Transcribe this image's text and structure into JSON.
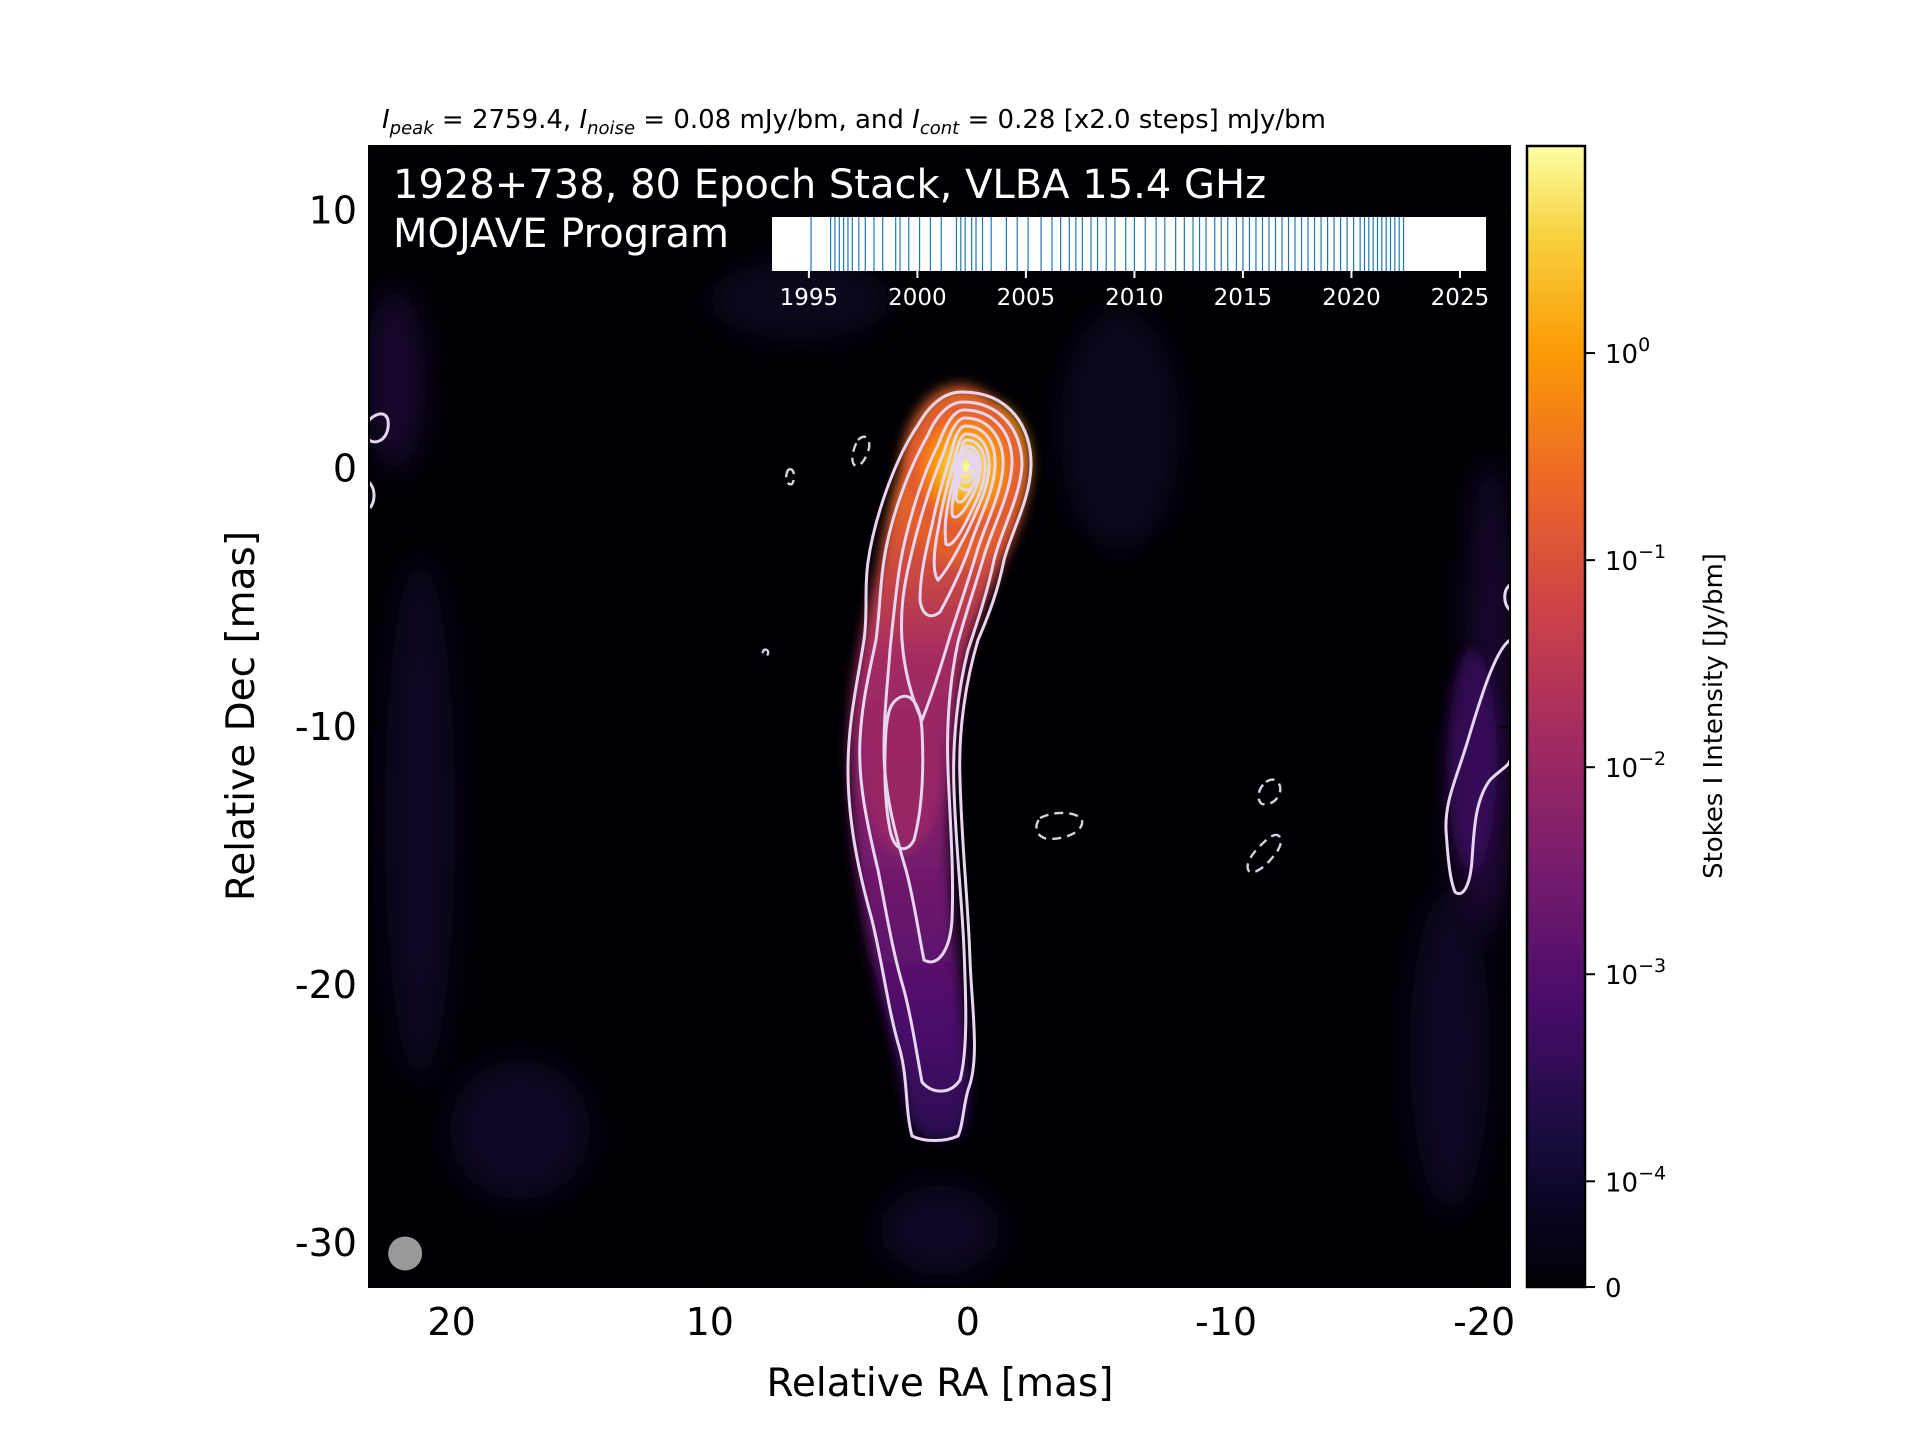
{
  "chart_data": {
    "type": "heatmap",
    "title_parts": {
      "peak_symbol": "I",
      "peak_sub": "peak",
      "peak_value": " = 2759.4, ",
      "noise_symbol": "I",
      "noise_sub": "noise",
      "noise_value": " = 0.08 mJy/bm, and ",
      "cont_symbol": "I",
      "cont_sub": "cont",
      "cont_value": " = 0.28 [x2.0 steps] mJy/bm"
    },
    "overlay_title": "1928+738, 80 Epoch Stack, VLBA 15.4 GHz",
    "overlay_subtitle": "MOJAVE Program",
    "xlabel": "Relative RA [mas]",
    "ylabel": "Relative Dec [mas]",
    "xlim": [
      23.2,
      -21
    ],
    "ylim": [
      -31.7,
      12.5
    ],
    "x_ticks": [
      {
        "v": 20,
        "label": "20"
      },
      {
        "v": 10,
        "label": "10"
      },
      {
        "v": 0,
        "label": "0"
      },
      {
        "v": -10,
        "label": "-10"
      },
      {
        "v": -20,
        "label": "-20"
      }
    ],
    "y_ticks": [
      {
        "v": 10,
        "label": "10"
      },
      {
        "v": 0,
        "label": "0"
      },
      {
        "v": -10,
        "label": "-10"
      },
      {
        "v": -20,
        "label": "-20"
      },
      {
        "v": -30,
        "label": "-30"
      }
    ],
    "colorbar": {
      "label": "Stokes I Intensity [Jy/bm]",
      "scale": "log",
      "colormap": "inferno",
      "ticks": [
        {
          "value": 1,
          "base": "10",
          "exp": "0"
        },
        {
          "value": 0.1,
          "base": "10",
          "exp": "−1"
        },
        {
          "value": 0.01,
          "base": "10",
          "exp": "−2"
        },
        {
          "value": 0.001,
          "base": "10",
          "exp": "−3"
        },
        {
          "value": 0.0001,
          "base": "10",
          "exp": "−4"
        },
        {
          "value": 0,
          "label": "0"
        }
      ]
    },
    "contour_levels_mJy": [
      0.28,
      0.56,
      1.12,
      2.24,
      4.48,
      8.96,
      17.92,
      35.84,
      71.68,
      143.36,
      286.72,
      573.44,
      1146.88,
      2293.76
    ],
    "negative_contour_mJy": -0.28,
    "peak_mJy": 2759.4,
    "jet_ridge": [
      {
        "ra": 0.1,
        "dec": 0.0
      },
      {
        "ra": 0.6,
        "dec": -3.0
      },
      {
        "ra": 1.3,
        "dec": -6.0
      },
      {
        "ra": 2.3,
        "dec": -9.0
      },
      {
        "ra": 2.7,
        "dec": -12.0
      },
      {
        "ra": 2.7,
        "dec": -16.0
      },
      {
        "ra": 2.3,
        "dec": -20.0
      },
      {
        "ra": 1.7,
        "dec": -24.0
      }
    ],
    "beam": {
      "ra": 21.8,
      "dec": -30.4
    },
    "epoch_timeline": {
      "xlim": [
        1993.3,
        2026.2
      ],
      "ticks": [
        {
          "v": 1995,
          "label": "1995"
        },
        {
          "v": 2000,
          "label": "2000"
        },
        {
          "v": 2005,
          "label": "2005"
        },
        {
          "v": 2010,
          "label": "2010"
        },
        {
          "v": 2015,
          "label": "2015"
        },
        {
          "v": 2020,
          "label": "2020"
        },
        {
          "v": 2025,
          "label": "2025"
        }
      ],
      "epoch_count": 80,
      "epochs": [
        1995.1,
        1996.0,
        1996.2,
        1996.4,
        1996.6,
        1996.8,
        1997.0,
        1997.3,
        1997.6,
        1998.0,
        1998.4,
        1999.0,
        1999.2,
        1999.6,
        2000.1,
        2000.6,
        2001.1,
        2001.8,
        2002.0,
        2002.2,
        2002.5,
        2002.7,
        2003.0,
        2003.4,
        2004.1,
        2004.6,
        2005.1,
        2005.7,
        2006.2,
        2006.6,
        2007.0,
        2007.3,
        2007.6,
        2008.0,
        2008.3,
        2008.7,
        2009.1,
        2009.6,
        2010.0,
        2010.5,
        2011.0,
        2011.4,
        2011.9,
        2012.3,
        2012.7,
        2013.0,
        2013.3,
        2013.7,
        2014.0,
        2014.3,
        2014.7,
        2015.0,
        2015.3,
        2015.6,
        2015.9,
        2016.2,
        2016.5,
        2016.8,
        2017.1,
        2017.4,
        2017.7,
        2018.0,
        2018.3,
        2018.6,
        2018.9,
        2019.2,
        2019.5,
        2019.8,
        2020.1,
        2020.4,
        2020.6,
        2020.8,
        2021.0,
        2021.2,
        2021.4,
        2021.6,
        2021.8,
        2022.0,
        2022.2,
        2022.4
      ]
    }
  }
}
